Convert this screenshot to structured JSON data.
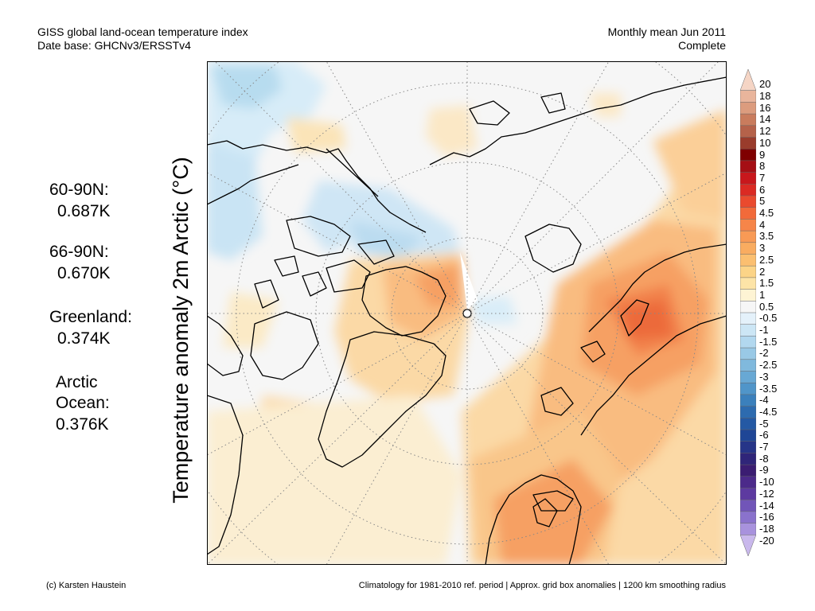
{
  "header": {
    "line1": "GISS global land-ocean temperature index",
    "line2": "Date base: GHCNv3/ERSSTv4",
    "period": "Monthly mean Jun 2011",
    "status": "Complete"
  },
  "stats": {
    "r1_label": "60-90N:",
    "r1_value": "0.687K",
    "r2_label": "66-90N:",
    "r2_value": "0.670K",
    "r3_label": "Greenland:",
    "r3_value": "0.374K",
    "r4_label": "Arctic",
    "r4_label2": "Ocean:",
    "r4_value": "0.376K"
  },
  "axis_title": "Temperature anomaly 2m Arctic (°C)",
  "colorbar": {
    "labels": [
      "20",
      "18",
      "16",
      "14",
      "12",
      "10",
      "9",
      "8",
      "7",
      "6",
      "5",
      "4.5",
      "4",
      "3.5",
      "3",
      "2.5",
      "2",
      "1.5",
      "1",
      "0.5",
      "-0.5",
      "-1",
      "-1.5",
      "-2",
      "-2.5",
      "-3",
      "-3.5",
      "-4",
      "-4.5",
      "-5",
      "-6",
      "-7",
      "-8",
      "-9",
      "-10",
      "-12",
      "-14",
      "-16",
      "-18",
      "-20"
    ],
    "colors": [
      "#f5d5c5",
      "#e9b59c",
      "#dc9c7e",
      "#c97c5d",
      "#b5624a",
      "#9a3c2c",
      "#7f0000",
      "#a50f15",
      "#c8171c",
      "#db2a23",
      "#ea4a2e",
      "#f26a3a",
      "#f68549",
      "#f89a55",
      "#f9ac60",
      "#fbbf70",
      "#fcd487",
      "#fde4a7",
      "#fef4d4",
      "#f6f6f6",
      "#e4f1fa",
      "#cce6f5",
      "#b2d8ef",
      "#99c9e6",
      "#80b9dd",
      "#68a8d4",
      "#5095c9",
      "#3b80bc",
      "#2d6baf",
      "#2459a4",
      "#1f4696",
      "#263588",
      "#2f2579",
      "#3b1d72",
      "#4c2a8a",
      "#5d3aa0",
      "#7155b8",
      "#8a72cc",
      "#a892dd",
      "#c9b8ec"
    ]
  },
  "footer": {
    "left": "(c) Karsten Haustein",
    "right": "Climatology for 1981-2010 ref. period | Approx. grid box anomalies | 1200 km smoothing radius"
  }
}
